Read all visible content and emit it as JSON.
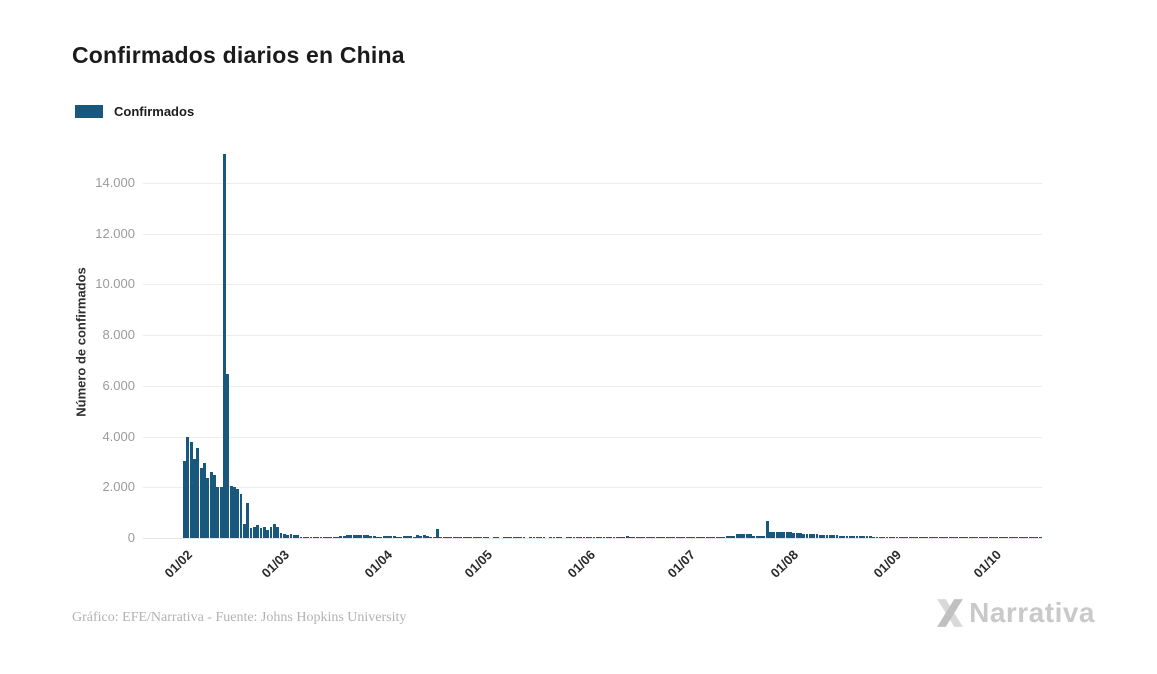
{
  "header": {
    "title": "Confirmados diarios en China"
  },
  "legend": {
    "label": "Confirmados"
  },
  "footer": {
    "credit": "Gráfico: EFE/Narrativa - Fuente: Johns Hopkins University",
    "brand": "Narrativa"
  },
  "colors": {
    "bar": "#18587C",
    "grid": "#ededed",
    "zero_line": "#e6e6e6",
    "y_tick_text": "#9b9b9b",
    "x_tick_text": "#2b2b2b",
    "title_text": "#1b1b1b",
    "footer_text": "#b2b2b2",
    "logo_gray_light": "#d9d9d9",
    "logo_gray_dark": "#c0c0c0"
  },
  "chart_data": {
    "type": "bar",
    "title": "Confirmados diarios en China",
    "series_name": "Confirmados",
    "ylabel": "Número de confirmados",
    "xlabel": "",
    "x_unit": "day",
    "grid": "horizontal-only",
    "legend_position": "top-left",
    "ylim": [
      0,
      15500
    ],
    "y_ticks": [
      {
        "value": 0,
        "label": "0"
      },
      {
        "value": 2000,
        "label": "2.000"
      },
      {
        "value": 4000,
        "label": "4.000"
      },
      {
        "value": 6000,
        "label": "6.000"
      },
      {
        "value": 8000,
        "label": "8.000"
      },
      {
        "value": 10000,
        "label": "10.000"
      },
      {
        "value": 12000,
        "label": "12.000"
      },
      {
        "value": 14000,
        "label": "14.000"
      }
    ],
    "month_ticks": [
      {
        "label": "01/02",
        "day": 0
      },
      {
        "label": "01/03",
        "day": 29
      },
      {
        "label": "01/04",
        "day": 60
      },
      {
        "label": "01/05",
        "day": 90
      },
      {
        "label": "01/06",
        "day": 121
      },
      {
        "label": "01/07",
        "day": 151
      },
      {
        "label": "01/08",
        "day": 182
      },
      {
        "label": "01/09",
        "day": 213
      },
      {
        "label": "01/10",
        "day": 243
      }
    ],
    "values": [
      3050,
      4000,
      3790,
      3100,
      3560,
      2770,
      2970,
      2380,
      2607,
      2478,
      2015,
      2028,
      15136,
      6463,
      2055,
      2005,
      1930,
      1740,
      550,
      1380,
      400,
      420,
      510,
      410,
      440,
      330,
      430,
      570,
      433,
      202,
      143,
      119,
      139,
      120,
      100,
      46,
      45,
      20,
      31,
      26,
      23,
      27,
      29,
      39,
      41,
      33,
      46,
      78,
      67,
      103,
      110,
      120,
      130,
      120,
      119,
      114,
      92,
      79,
      59,
      54,
      72,
      65,
      80,
      62,
      49,
      45,
      89,
      97,
      63,
      52,
      108,
      99,
      115,
      89,
      49,
      46,
      352,
      30,
      27,
      16,
      22,
      14,
      12,
      15,
      20,
      11,
      6,
      25,
      22,
      16,
      12,
      2,
      0,
      3,
      16,
      0,
      2,
      6,
      4,
      17,
      20,
      18,
      7,
      0,
      6,
      4,
      11,
      13,
      9,
      0,
      8,
      6,
      7,
      3,
      0,
      4,
      8,
      11,
      12,
      7,
      6,
      16,
      5,
      4,
      9,
      6,
      8,
      7,
      6,
      10,
      13,
      15,
      57,
      62,
      49,
      56,
      44,
      37,
      32,
      28,
      30,
      26,
      22,
      19,
      16,
      14,
      12,
      17,
      21,
      12,
      9,
      5,
      8,
      10,
      12,
      13,
      17,
      22,
      26,
      30,
      35,
      42,
      59,
      68,
      77,
      95,
      152,
      168,
      175,
      160,
      143,
      90,
      85,
      80,
      95,
      680,
      246,
      234,
      224,
      239,
      229,
      218,
      226,
      210,
      195,
      180,
      170,
      162,
      155,
      148,
      140,
      133,
      127,
      120,
      114,
      108,
      103,
      98,
      93,
      88,
      84,
      80,
      76,
      72,
      68,
      64,
      60,
      56,
      52,
      48,
      45,
      42,
      39,
      36,
      32,
      29,
      27,
      25,
      28,
      31,
      26,
      23,
      21,
      24,
      27,
      22,
      19,
      17,
      20,
      23,
      25,
      21,
      18,
      16,
      19,
      22,
      17,
      15,
      18,
      21,
      16,
      14,
      17,
      19,
      22,
      17,
      14,
      16,
      20,
      24,
      18,
      15,
      13,
      16,
      19,
      14,
      12,
      15
    ]
  }
}
